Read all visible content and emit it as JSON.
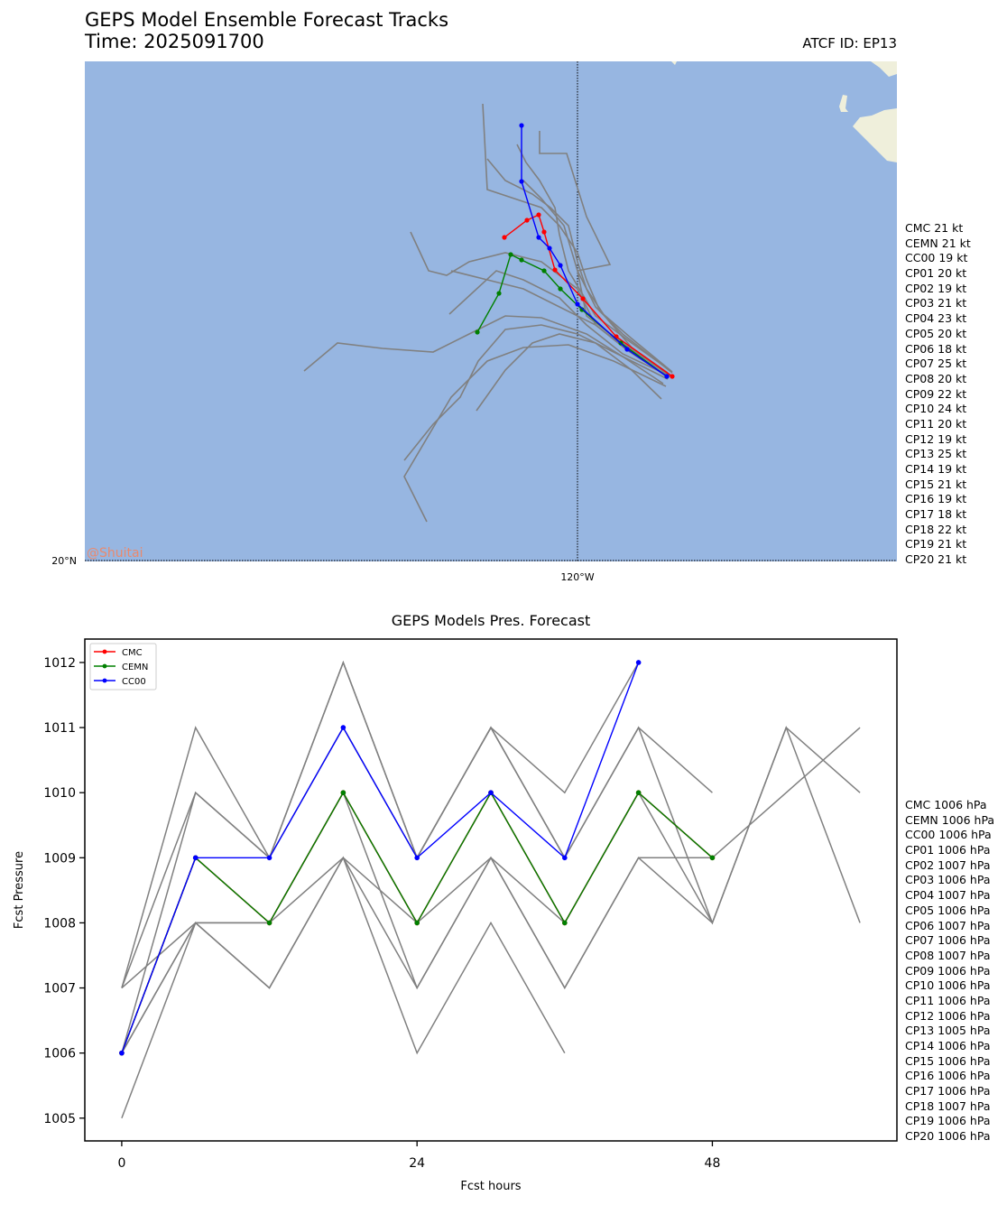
{
  "header": {
    "title_line1": "GEPS Model Ensemble Forecast Tracks",
    "title_line2": "Time: 2025091700",
    "atcf": "ATCF ID: EP13"
  },
  "map": {
    "lat_label": "20°N",
    "lon_label": "120°W",
    "watermark": "@Shuitai",
    "ocean_color": "#97b6e1",
    "land_color": "#efefdb"
  },
  "wind_labels": [
    "CMC 21 kt",
    "CEMN 21 kt",
    "CC00 19 kt",
    "CP01 20 kt",
    "CP02 19 kt",
    "CP03 21 kt",
    "CP04 23 kt",
    "CP05 20 kt",
    "CP06 18 kt",
    "CP07 25 kt",
    "CP08 20 kt",
    "CP09 22 kt",
    "CP10 24 kt",
    "CP11 20 kt",
    "CP12 19 kt",
    "CP13 25 kt",
    "CP14 19 kt",
    "CP15 21 kt",
    "CP16 19 kt",
    "CP17 18 kt",
    "CP18 22 kt",
    "CP19 21 kt",
    "CP20 21 kt"
  ],
  "pressure_labels": [
    "CMC 1006 hPa",
    "CEMN 1006 hPa",
    "CC00 1006 hPa",
    "CP01 1006 hPa",
    "CP02 1007 hPa",
    "CP03 1006 hPa",
    "CP04 1007 hPa",
    "CP05 1006 hPa",
    "CP06 1007 hPa",
    "CP07 1006 hPa",
    "CP08 1007 hPa",
    "CP09 1006 hPa",
    "CP10 1006 hPa",
    "CP11 1006 hPa",
    "CP12 1006 hPa",
    "CP13 1005 hPa",
    "CP14 1006 hPa",
    "CP15 1006 hPa",
    "CP16 1006 hPa",
    "CP17 1006 hPa",
    "CP18 1007 hPa",
    "CP19 1006 hPa",
    "CP20 1006 hPa"
  ],
  "chart_data": [
    {
      "type": "line",
      "chart": "track-map",
      "colors": {
        "CMC": "#ff0000",
        "CEMN": "#008000",
        "CC00": "#0000ff",
        "members": "#808080"
      },
      "highlight_tracks": [
        {
          "name": "CMC",
          "points": [
            [
              745,
              417
            ],
            [
              683,
              373
            ],
            [
              646,
              331
            ],
            [
              615,
              299
            ],
            [
              603,
              257
            ],
            [
              597,
              238
            ],
            [
              584,
              244
            ],
            [
              559,
              263
            ]
          ]
        },
        {
          "name": "CEMN",
          "points": [
            [
              739,
              417
            ],
            [
              688,
              380
            ],
            [
              645,
              343
            ],
            [
              621,
              320
            ],
            [
              603,
              300
            ],
            [
              578,
              288
            ],
            [
              566,
              282
            ],
            [
              553,
              325
            ],
            [
              529,
              368
            ]
          ]
        },
        {
          "name": "CC00",
          "points": [
            [
              739,
              417
            ],
            [
              695,
              387
            ],
            [
              640,
              337
            ],
            [
              621,
              294
            ],
            [
              609,
              275
            ],
            [
              597,
              263
            ],
            [
              578,
              201
            ],
            [
              578,
              139
            ]
          ]
        }
      ],
      "member_tracks": [
        [
          [
            745,
            413
          ],
          [
            690,
            370
          ],
          [
            660,
            340
          ],
          [
            640,
            300
          ],
          [
            625,
            250
          ],
          [
            600,
            220
          ],
          [
            580,
            200
          ]
        ],
        [
          [
            740,
            418
          ],
          [
            700,
            390
          ],
          [
            660,
            360
          ],
          [
            620,
            340
          ],
          [
            580,
            320
          ],
          [
            540,
            310
          ],
          [
            500,
            300
          ]
        ],
        [
          [
            735,
            425
          ],
          [
            690,
            395
          ],
          [
            640,
            370
          ],
          [
            600,
            360
          ],
          [
            560,
            365
          ],
          [
            530,
            400
          ],
          [
            510,
            440
          ],
          [
            480,
            470
          ],
          [
            448,
            510
          ]
        ],
        [
          [
            738,
            428
          ],
          [
            680,
            400
          ],
          [
            630,
            382
          ],
          [
            580,
            385
          ],
          [
            540,
            400
          ],
          [
            500,
            440
          ],
          [
            448,
            528
          ],
          [
            473,
            578
          ]
        ],
        [
          [
            742,
            410
          ],
          [
            700,
            380
          ],
          [
            660,
            350
          ],
          [
            630,
            300
          ],
          [
            620,
            260
          ],
          [
            615,
            230
          ],
          [
            598,
            200
          ],
          [
            583,
            180
          ],
          [
            573,
            160
          ]
        ],
        [
          [
            740,
            420
          ],
          [
            690,
            395
          ],
          [
            650,
            370
          ],
          [
            600,
            352
          ],
          [
            560,
            350
          ],
          [
            520,
            370
          ],
          [
            480,
            390
          ],
          [
            424,
            386
          ],
          [
            374,
            380
          ],
          [
            337,
            411
          ]
        ],
        [
          [
            738,
            416
          ],
          [
            695,
            388
          ],
          [
            660,
            360
          ],
          [
            640,
            320
          ],
          [
            600,
            290
          ],
          [
            560,
            280
          ],
          [
            520,
            290
          ],
          [
            495,
            305
          ],
          [
            475,
            300
          ],
          [
            455,
            257
          ]
        ],
        [
          [
            745,
            412
          ],
          [
            700,
            375
          ],
          [
            665,
            345
          ],
          [
            650,
            310
          ],
          [
            640,
            280
          ],
          [
            620,
            250
          ],
          [
            600,
            230
          ],
          [
            570,
            220
          ],
          [
            540,
            210
          ],
          [
            535,
            115
          ]
        ],
        [
          [
            740,
            415
          ],
          [
            690,
            380
          ],
          [
            650,
            350
          ],
          [
            640,
            300
          ],
          [
            676,
            293
          ],
          [
            650,
            240
          ],
          [
            628,
            170
          ],
          [
            598,
            170
          ],
          [
            598,
            145
          ]
        ],
        [
          [
            733,
            442
          ],
          [
            700,
            410
          ],
          [
            660,
            380
          ],
          [
            620,
            370
          ],
          [
            590,
            380
          ],
          [
            560,
            410
          ],
          [
            528,
            455
          ]
        ],
        [
          [
            745,
            418
          ],
          [
            690,
            392
          ],
          [
            650,
            360
          ],
          [
            620,
            330
          ],
          [
            580,
            310
          ],
          [
            550,
            300
          ],
          [
            498,
            348
          ]
        ],
        [
          [
            740,
            413
          ],
          [
            700,
            385
          ],
          [
            670,
            350
          ],
          [
            650,
            320
          ],
          [
            640,
            290
          ],
          [
            630,
            250
          ],
          [
            610,
            230
          ],
          [
            590,
            215
          ],
          [
            560,
            200
          ],
          [
            540,
            176
          ]
        ]
      ]
    },
    {
      "type": "line",
      "title": "GEPS Models Pres. Forecast",
      "xlabel": "Fcst hours",
      "ylabel": "Fcst Pressure",
      "x_ticks": [
        0,
        24,
        48
      ],
      "y_ticks": [
        1005,
        1006,
        1007,
        1008,
        1009,
        1010,
        1011,
        1012
      ],
      "xlim": [
        -3,
        63
      ],
      "ylim": [
        1004.65,
        1012.36
      ],
      "legend": {
        "placement": "top-left",
        "entries": [
          "CMC",
          "CEMN",
          "CC00"
        ]
      },
      "series": [
        {
          "name": "CMC",
          "color": "#ff0000",
          "x": [
            0,
            6,
            12,
            18,
            24,
            30,
            36,
            42,
            48
          ],
          "values": [
            1006,
            1009,
            1008,
            1010,
            1008,
            1010,
            1008,
            1010,
            1009
          ]
        },
        {
          "name": "CEMN",
          "color": "#008000",
          "x": [
            0,
            6,
            12,
            18,
            24,
            30,
            36,
            42,
            48
          ],
          "values": [
            1006,
            1009,
            1008,
            1010,
            1008,
            1010,
            1008,
            1010,
            1009
          ]
        },
        {
          "name": "CC00",
          "color": "#0000ff",
          "x": [
            0,
            6,
            12,
            18,
            24,
            30,
            36,
            42
          ],
          "values": [
            1006,
            1009,
            1009,
            1011,
            1009,
            1010,
            1009,
            1012
          ]
        }
      ],
      "members": [
        {
          "x": [
            0,
            6,
            12,
            18,
            24,
            30,
            36,
            42
          ],
          "values": [
            1007,
            1011,
            1009,
            1012,
            1009,
            1011,
            1010,
            1012
          ]
        },
        {
          "x": [
            0,
            6,
            12,
            18,
            24,
            30,
            36,
            42,
            48
          ],
          "values": [
            1007,
            1010,
            1009,
            1012,
            1009,
            1011,
            1009,
            1011,
            1010
          ]
        },
        {
          "x": [
            0,
            6,
            12,
            18,
            24,
            30,
            36,
            42,
            48,
            54,
            60
          ],
          "values": [
            1006,
            1010,
            1009,
            1011,
            1009,
            1011,
            1009,
            1011,
            1008,
            1011,
            1010
          ]
        },
        {
          "x": [
            0,
            6,
            12,
            18,
            24,
            30,
            36,
            42,
            48,
            54,
            60
          ],
          "values": [
            1006,
            1009,
            1008,
            1010,
            1008,
            1010,
            1008,
            1010,
            1009,
            1010,
            1011
          ]
        },
        {
          "x": [
            0,
            6,
            12,
            18,
            24,
            30,
            36,
            42,
            48,
            54,
            60
          ],
          "values": [
            1006,
            1008,
            1008,
            1009,
            1008,
            1009,
            1008,
            1010,
            1008,
            1011,
            1008
          ]
        },
        {
          "x": [
            0,
            6,
            12,
            18,
            24,
            30,
            36,
            42,
            48
          ],
          "values": [
            1006,
            1008,
            1007,
            1009,
            1007,
            1009,
            1007,
            1009,
            1008
          ]
        },
        {
          "x": [
            0,
            6,
            12,
            18,
            24,
            30,
            36
          ],
          "values": [
            1005,
            1008,
            1007,
            1009,
            1006,
            1008,
            1006
          ]
        },
        {
          "x": [
            0,
            6,
            12,
            18,
            24,
            30,
            36,
            42,
            48
          ],
          "values": [
            1007,
            1008,
            1008,
            1010,
            1007,
            1009,
            1007,
            1009,
            1009
          ]
        }
      ]
    }
  ]
}
